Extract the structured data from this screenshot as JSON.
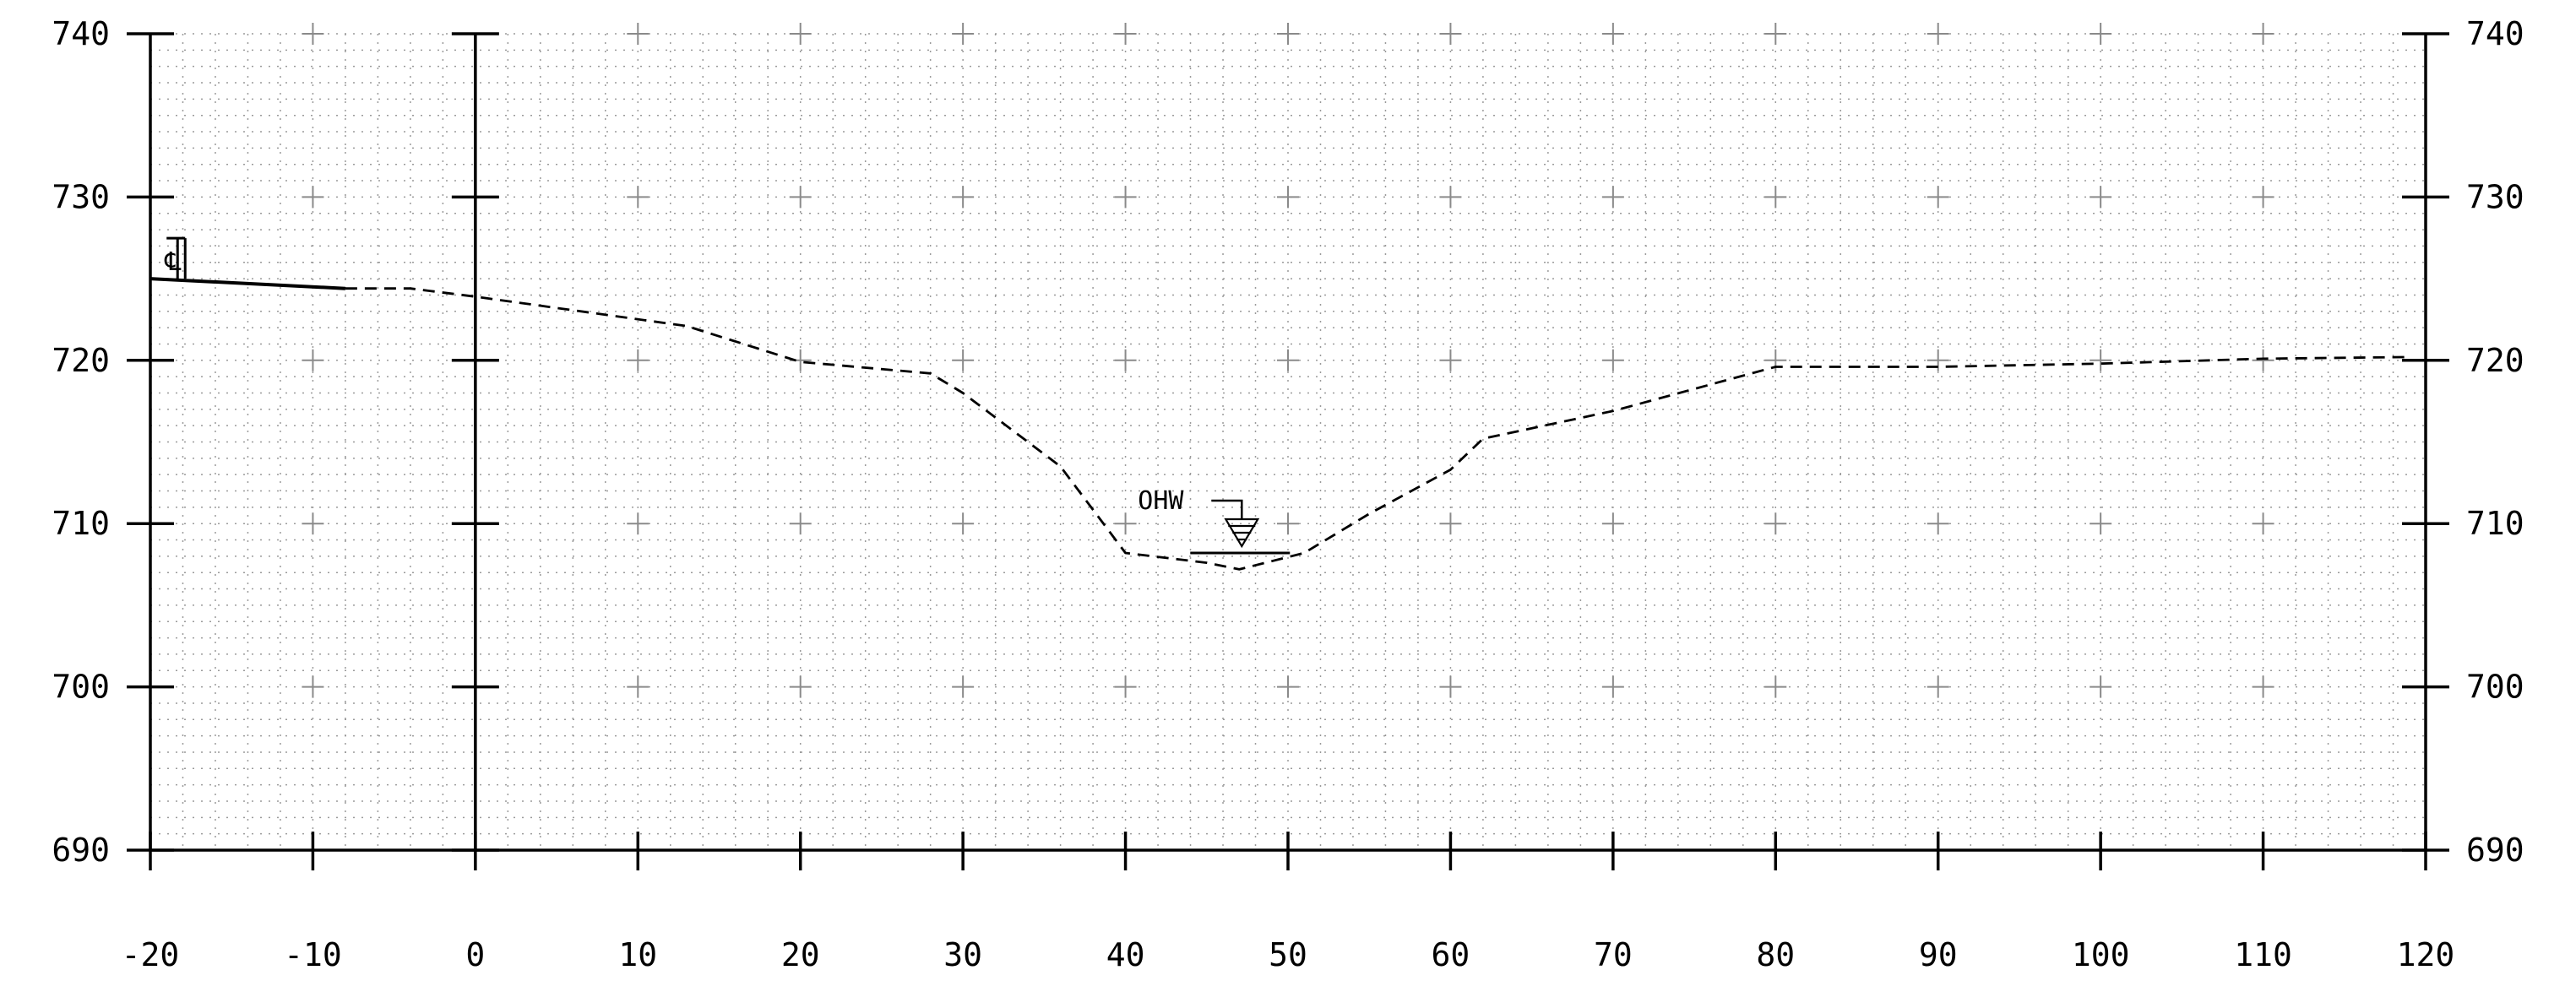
{
  "chart_data": {
    "type": "line",
    "title": "",
    "xlabel": "",
    "ylabel": "",
    "xlim": [
      -20,
      120
    ],
    "ylim": [
      690,
      740
    ],
    "x_ticks": [
      -20,
      -10,
      0,
      10,
      20,
      30,
      40,
      50,
      60,
      70,
      80,
      90,
      100,
      110,
      120
    ],
    "x_tick_labels": [
      "-20",
      "-10",
      "0",
      "10",
      "20",
      "30",
      "40",
      "50",
      "60",
      "70",
      "80",
      "90",
      "100",
      "110",
      "120"
    ],
    "y_ticks": [
      690,
      700,
      710,
      720,
      730,
      740
    ],
    "y_tick_labels": [
      "690",
      "700",
      "710",
      "720",
      "730",
      "740"
    ],
    "y_axis_both_sides": true,
    "grid": "dotted minor grid with plus markers at major intersections",
    "series": [
      {
        "style": "solid",
        "color": "#000000",
        "x": [
          -20,
          -8
        ],
        "y": [
          725.0,
          724.4
        ]
      },
      {
        "style": "dashed",
        "color": "#000000",
        "x": [
          -8,
          -4,
          0,
          13,
          20,
          28,
          30,
          36,
          40,
          45,
          47,
          51,
          55,
          60,
          62,
          70,
          80,
          90,
          100,
          110,
          119
        ],
        "y": [
          724.4,
          724.4,
          723.9,
          722.1,
          719.9,
          719.2,
          718.0,
          713.5,
          708.2,
          707.6,
          707.2,
          708.2,
          710.6,
          713.3,
          715.2,
          716.9,
          719.6,
          719.6,
          719.8,
          720.1,
          720.2
        ]
      }
    ],
    "annotations": [
      {
        "text": "OHW",
        "type": "ordinary-high-water",
        "x": 47,
        "y": 708.2
      },
      {
        "text": "℄",
        "type": "centerline",
        "x": -19,
        "y": 725.0
      }
    ]
  }
}
